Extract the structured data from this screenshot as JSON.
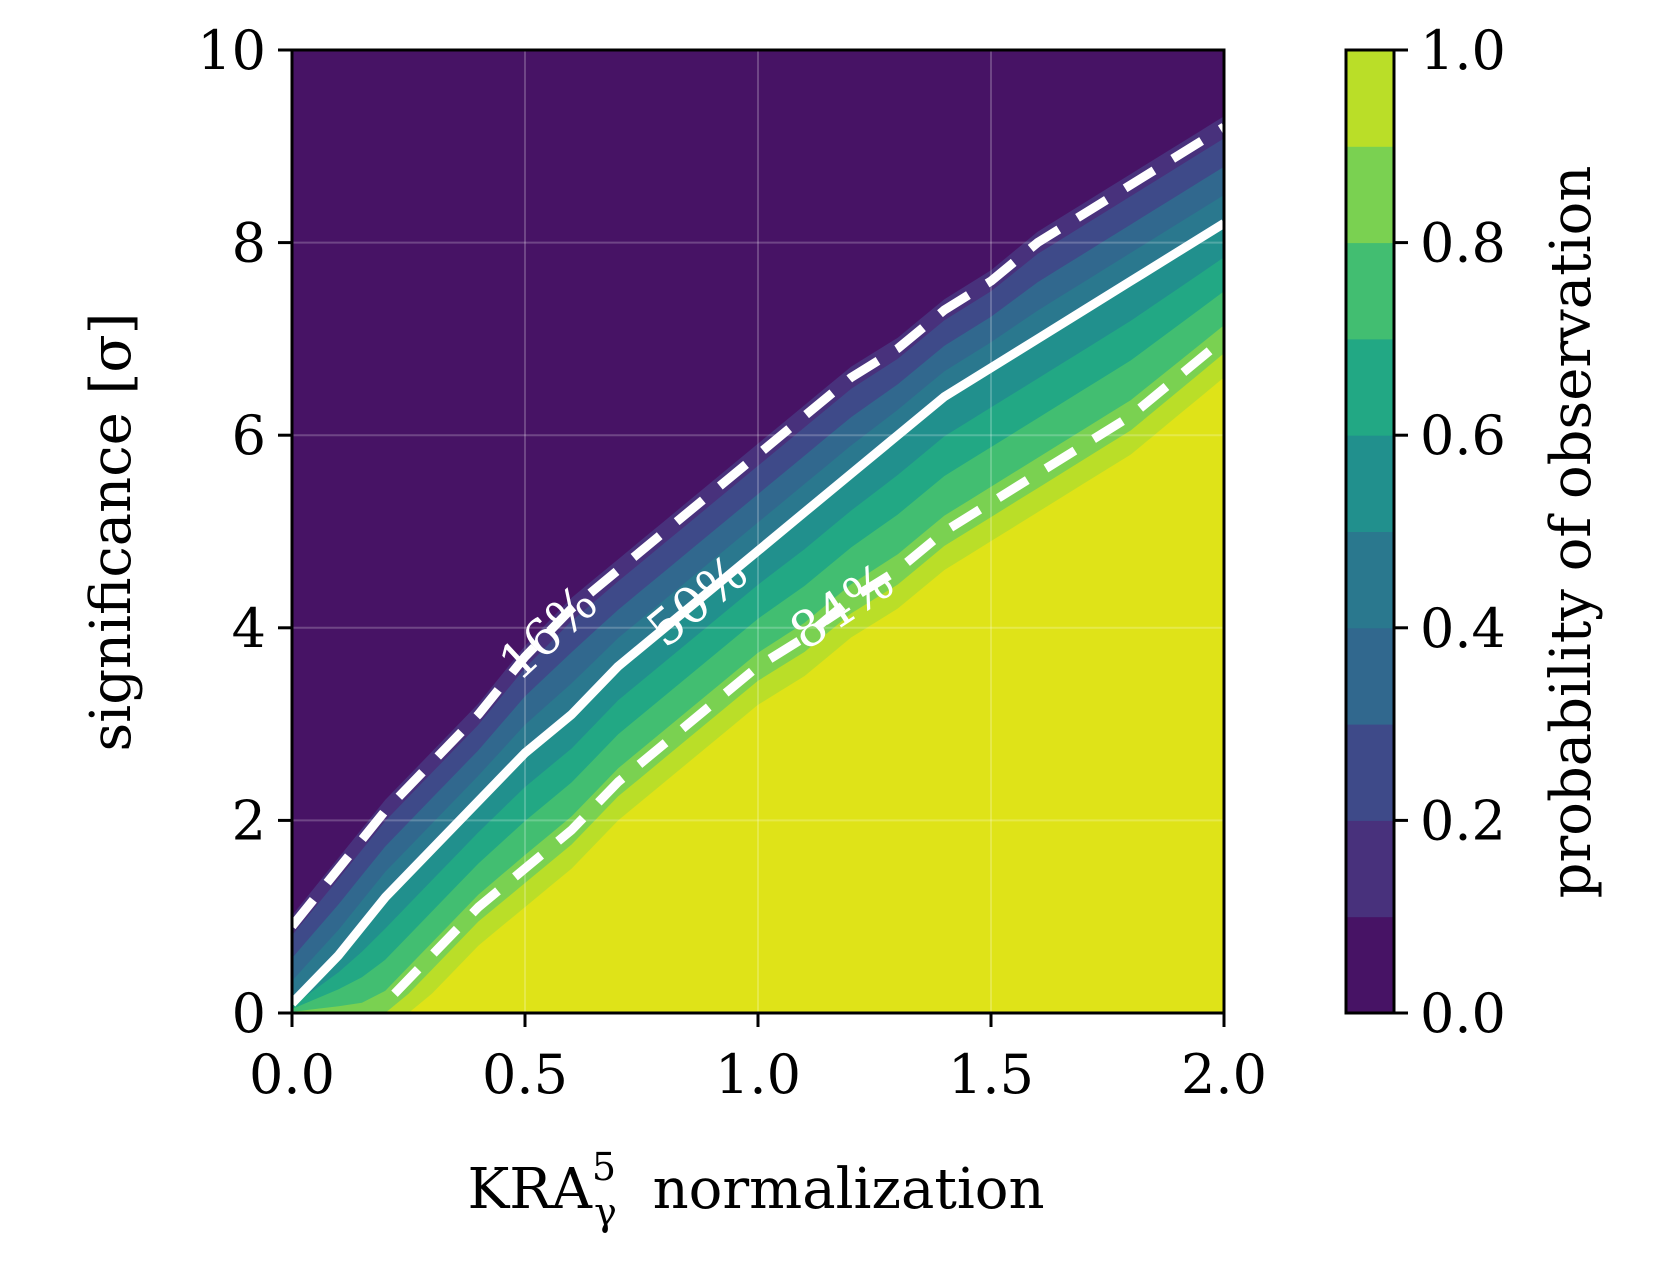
{
  "chart_data": {
    "type": "contourf",
    "xlabel": "KRA",
    "xlabel_superscript": "5",
    "xlabel_subscript": "γ",
    "xlabel_suffix": "normalization",
    "ylabel": "significance [σ]",
    "xlim": [
      0,
      2.0
    ],
    "ylim": [
      0,
      10
    ],
    "x_ticks": [
      0.0,
      0.5,
      1.0,
      1.5,
      2.0
    ],
    "x_tick_labels": [
      "0.0",
      "0.5",
      "1.0",
      "1.5",
      "2.0"
    ],
    "y_ticks": [
      0,
      2,
      4,
      6,
      8,
      10
    ],
    "y_tick_labels": [
      "0",
      "2",
      "4",
      "6",
      "8",
      "10"
    ],
    "grid": true,
    "colorbar": {
      "label": "probability of observation",
      "range": [
        0.0,
        1.0
      ],
      "ticks": [
        0.0,
        0.2,
        0.4,
        0.6,
        0.8,
        1.0
      ],
      "tick_labels": [
        "0.0",
        "0.2",
        "0.4",
        "0.6",
        "0.8",
        "1.0"
      ],
      "levels": [
        0.0,
        0.1,
        0.2,
        0.3,
        0.4,
        0.5,
        0.6,
        0.7,
        0.8,
        0.9,
        1.0
      ],
      "colors": [
        "#471365",
        "#48317c",
        "#3e4a89",
        "#31688e",
        "#2a788e",
        "#21908d",
        "#22a884",
        "#42be71",
        "#7ad151",
        "#bade28",
        "#dfe318"
      ]
    },
    "contour_lines": [
      {
        "level": 0.16,
        "label": "16%",
        "style": "dashed",
        "x": [
          0.0,
          0.1,
          0.2,
          0.3,
          0.4,
          0.5,
          0.6,
          0.7,
          0.8,
          0.9,
          1.0,
          1.1,
          1.2,
          1.3,
          1.4,
          1.5,
          1.6,
          1.7,
          1.8,
          1.9,
          2.0
        ],
        "y": [
          0.9,
          1.5,
          2.1,
          2.6,
          3.1,
          3.7,
          4.2,
          4.6,
          5.0,
          5.4,
          5.8,
          6.2,
          6.6,
          6.9,
          7.3,
          7.6,
          8.0,
          8.3,
          8.6,
          8.9,
          9.2
        ]
      },
      {
        "level": 0.5,
        "label": "50%",
        "style": "solid",
        "x": [
          0.0,
          0.1,
          0.2,
          0.3,
          0.4,
          0.5,
          0.6,
          0.7,
          0.8,
          0.9,
          1.0,
          1.1,
          1.2,
          1.3,
          1.4,
          1.5,
          1.6,
          1.7,
          1.8,
          1.9,
          2.0
        ],
        "y": [
          0.1,
          0.6,
          1.2,
          1.7,
          2.2,
          2.7,
          3.1,
          3.6,
          4.0,
          4.4,
          4.8,
          5.2,
          5.6,
          6.0,
          6.4,
          6.7,
          7.0,
          7.3,
          7.6,
          7.9,
          8.2
        ]
      },
      {
        "level": 0.84,
        "label": "84%",
        "style": "dashed",
        "x": [
          0.22,
          0.3,
          0.4,
          0.5,
          0.6,
          0.7,
          0.8,
          0.9,
          1.0,
          1.1,
          1.2,
          1.3,
          1.4,
          1.5,
          1.6,
          1.7,
          1.8,
          1.9,
          2.0
        ],
        "y": [
          0.2,
          0.6,
          1.1,
          1.5,
          1.9,
          2.4,
          2.8,
          3.2,
          3.6,
          3.9,
          4.3,
          4.6,
          5.0,
          5.3,
          5.6,
          5.9,
          6.2,
          6.6,
          7.0
        ]
      }
    ]
  }
}
